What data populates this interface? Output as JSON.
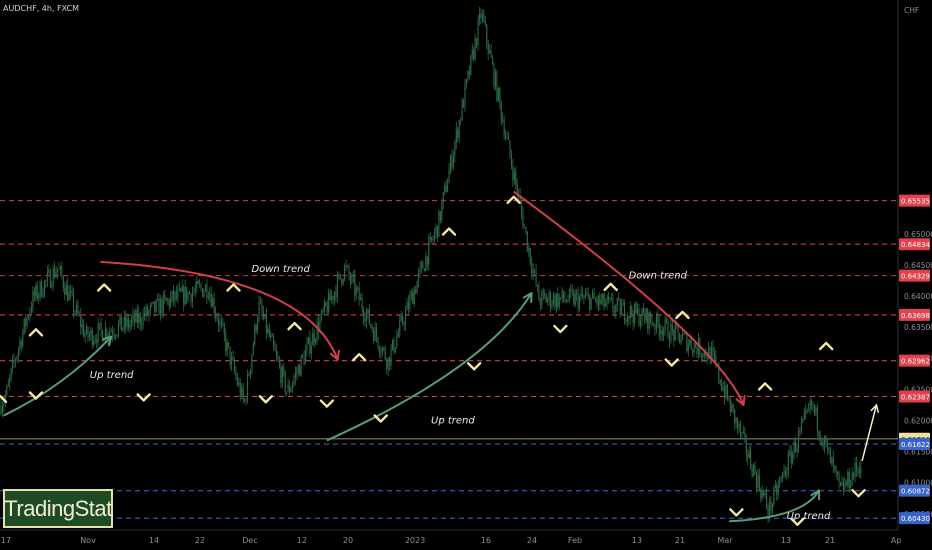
{
  "header": {
    "symbol_line": "AUDCHF, 4h, FXCM"
  },
  "brand": {
    "text": "TradingStat"
  },
  "colors": {
    "background": "#000000",
    "candle": "#2f6b48",
    "resistance_line": "#e0414a",
    "support_line": "#3a63c9",
    "current_line": "#ede3a0",
    "arrow_marker": "#f5e8a0",
    "down_trend_arrow": "#d0404a",
    "up_trend_arrow": "#5a9a78",
    "axis_text": "#8a8e99"
  },
  "chart_data": {
    "type": "line",
    "title": "",
    "ylabel": "CHF",
    "ylim": [
      0.6024,
      0.6876
    ],
    "y_ticks": [
      0.605,
      0.61,
      0.615,
      0.62,
      0.625,
      0.63,
      0.635,
      0.64,
      0.645,
      0.65
    ],
    "x_ticks": [
      "17",
      "Nov",
      "14",
      "22",
      "Dec",
      "12",
      "20",
      "2023",
      "16",
      "24",
      "Feb",
      "13",
      "21",
      "Mar",
      "13",
      "21",
      "Ap"
    ],
    "price_levels": [
      {
        "value": 0.65535,
        "label": "0.65535",
        "kind": "resistance"
      },
      {
        "value": 0.64834,
        "label": "0.64834",
        "kind": "resistance"
      },
      {
        "value": 0.64329,
        "label": "0.64329",
        "kind": "resistance"
      },
      {
        "value": 0.63698,
        "label": "0.63698",
        "kind": "resistance"
      },
      {
        "value": 0.62962,
        "label": "0.62962",
        "kind": "resistance"
      },
      {
        "value": 0.62387,
        "label": "0.62387",
        "kind": "resistance"
      },
      {
        "value": 0.61706,
        "label": "0.61706",
        "kind": "current"
      },
      {
        "value": 0.61622,
        "label": "0.61622",
        "kind": "support"
      },
      {
        "value": 0.60872,
        "label": "0.60872",
        "kind": "support"
      },
      {
        "value": 0.6043,
        "label": "0.60430",
        "kind": "support"
      }
    ],
    "swing_points": [
      {
        "t": 0,
        "y": 0.6225
      },
      {
        "t": 2,
        "y": 0.6245
      },
      {
        "t": 4,
        "y": 0.6295
      },
      {
        "t": 9,
        "y": 0.6395
      },
      {
        "t": 16,
        "y": 0.6445
      },
      {
        "t": 24,
        "y": 0.6335
      },
      {
        "t": 36,
        "y": 0.6355
      },
      {
        "t": 48,
        "y": 0.6395
      },
      {
        "t": 58,
        "y": 0.6415
      },
      {
        "t": 68,
        "y": 0.6225
      },
      {
        "t": 72,
        "y": 0.6385
      },
      {
        "t": 80,
        "y": 0.6245
      },
      {
        "t": 96,
        "y": 0.6445
      },
      {
        "t": 108,
        "y": 0.6295
      },
      {
        "t": 122,
        "y": 0.6515
      },
      {
        "t": 134,
        "y": 0.6855
      },
      {
        "t": 150,
        "y": 0.6395
      },
      {
        "t": 164,
        "y": 0.6395
      },
      {
        "t": 180,
        "y": 0.6365
      },
      {
        "t": 198,
        "y": 0.6305
      },
      {
        "t": 214,
        "y": 0.6055
      },
      {
        "t": 226,
        "y": 0.6225
      },
      {
        "t": 234,
        "y": 0.6085
      },
      {
        "t": 240,
        "y": 0.6135
      }
    ],
    "projection": [
      {
        "t": 240,
        "y": 0.6135
      },
      {
        "t": 244,
        "y": 0.6225
      }
    ],
    "annotations": [
      {
        "text": "Down trend",
        "t": 70,
        "y": 0.6439
      },
      {
        "text": "Up trend",
        "t": 25,
        "y": 0.6268
      },
      {
        "text": "Up trend",
        "t": 120,
        "y": 0.6195
      },
      {
        "text": "Down trend",
        "t": 175,
        "y": 0.6428
      },
      {
        "text": "Up trend",
        "t": 219,
        "y": 0.6042
      }
    ],
    "markers_up": [
      {
        "t": 0,
        "y": 0.6238
      },
      {
        "t": 10,
        "y": 0.6345
      },
      {
        "t": 29,
        "y": 0.6417
      },
      {
        "t": 65,
        "y": 0.6417
      },
      {
        "t": 82,
        "y": 0.6355
      },
      {
        "t": 100,
        "y": 0.6305
      },
      {
        "t": 125,
        "y": 0.6507
      },
      {
        "t": 143,
        "y": 0.6558
      },
      {
        "t": 170,
        "y": 0.6418
      },
      {
        "t": 190,
        "y": 0.6373
      },
      {
        "t": 213,
        "y": 0.6258
      },
      {
        "t": 230,
        "y": 0.6323
      }
    ],
    "markers_down": [
      {
        "t": 10,
        "y": 0.6237
      },
      {
        "t": 40,
        "y": 0.6234
      },
      {
        "t": 74,
        "y": 0.6231
      },
      {
        "t": 91,
        "y": 0.6224
      },
      {
        "t": 106,
        "y": 0.62
      },
      {
        "t": 132,
        "y": 0.6284
      },
      {
        "t": 156,
        "y": 0.6344
      },
      {
        "t": 187,
        "y": 0.629
      },
      {
        "t": 205,
        "y": 0.6049
      },
      {
        "t": 222,
        "y": 0.6034
      },
      {
        "t": 239,
        "y": 0.608
      }
    ],
    "trend_arrows": [
      {
        "kind": "up",
        "pts": [
          [
            1,
            0.6208
          ],
          [
            18,
            0.6255
          ],
          [
            31,
            0.6335
          ]
        ]
      },
      {
        "kind": "down",
        "pts": [
          [
            28,
            0.6455
          ],
          [
            85,
            0.6435
          ],
          [
            94,
            0.6298
          ]
        ]
      },
      {
        "kind": "up",
        "pts": [
          [
            91,
            0.6168
          ],
          [
            135,
            0.6283
          ],
          [
            148,
            0.6405
          ]
        ]
      },
      {
        "kind": "down",
        "pts": [
          [
            143,
            0.6568
          ],
          [
            200,
            0.6325
          ],
          [
            207,
            0.6225
          ]
        ]
      },
      {
        "kind": "up",
        "pts": [
          [
            203,
            0.6038
          ],
          [
            224,
            0.6044
          ],
          [
            228,
            0.6088
          ]
        ]
      }
    ]
  }
}
